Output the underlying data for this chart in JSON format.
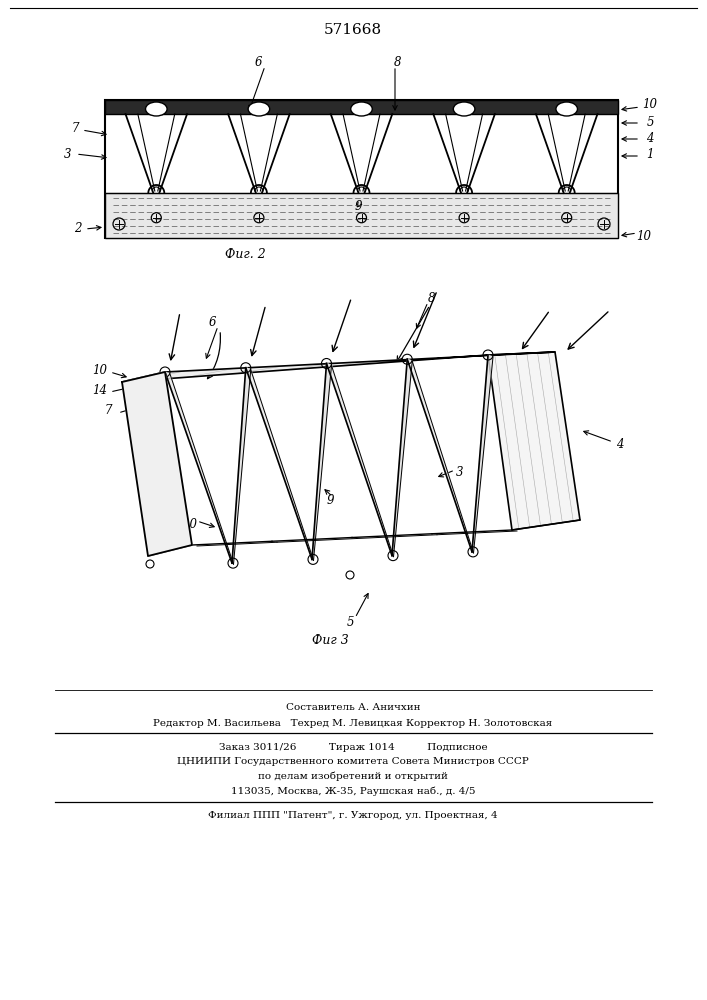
{
  "title": "571668",
  "bg_color": "#ffffff",
  "line_color": "#000000",
  "fig2_caption": "Фиг. 2",
  "fig3_caption": "Фиг 3",
  "footer_line1": "Составитель А. Аничхин",
  "footer_line2": "Редактор М. Васильева   Техред М. Левицкая Корректор Н. Золотовская",
  "footer_line3": "Заказ 3011/26          Тираж 1014          Подписное",
  "footer_line4": "ЦНИИПИ Государственного комитета Совета Министров СССР",
  "footer_line5": "по делам изобретений и открытий",
  "footer_line6": "113035, Москва, Ж-35, Раушская наб., д. 4/5",
  "footer_line7": "Филиал ППП \"Патент\", г. Ужгород, ул. Проектная, 4"
}
